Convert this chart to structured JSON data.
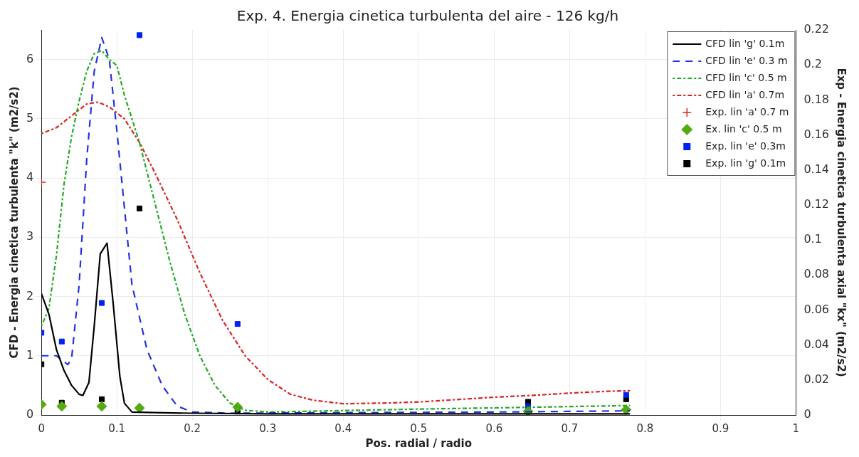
{
  "chart_data": {
    "type": "line",
    "title": "Exp. 4. Energia cinetica turbulenta del aire - 126 kg/h",
    "xlabel": "Pos. radial / radio",
    "ylabel": "CFD - Energia cinetica turbulenta \"k\" (m2/s2)",
    "y2label": "Exp - Energia cinetica turbulenta axial \"kx\" (m2/s2)",
    "xlim": [
      0,
      1
    ],
    "xticks": [
      0,
      0.1,
      0.2,
      0.3,
      0.4,
      0.5,
      0.6,
      0.7,
      0.8,
      0.9,
      1
    ],
    "ylim": [
      0,
      6.5
    ],
    "yticks": [
      0,
      1,
      2,
      3,
      4,
      5,
      6
    ],
    "y2lim": [
      0,
      0.22
    ],
    "y2ticks": [
      0,
      0.02,
      0.04,
      0.06,
      0.08,
      0.1,
      0.12,
      0.14,
      0.16,
      0.18,
      0.2,
      0.22
    ],
    "grid": true,
    "legend": "top right",
    "series": [
      {
        "name": "CFD lin 'g' 0.1m",
        "color": "#000000",
        "line_style": "solid",
        "marker": "none",
        "x": [
          0,
          0.01,
          0.02,
          0.03,
          0.04,
          0.05,
          0.055,
          0.063,
          0.07,
          0.078,
          0.087,
          0.095,
          0.104,
          0.11,
          0.12,
          0.15,
          0.2,
          0.3,
          0.5,
          0.78
        ],
        "values": [
          2.05,
          1.7,
          1.1,
          0.75,
          0.5,
          0.35,
          0.33,
          0.55,
          1.5,
          2.72,
          2.9,
          1.9,
          0.65,
          0.2,
          0.05,
          0.04,
          0.03,
          0.02,
          0.02,
          0.02
        ]
      },
      {
        "name": "CFD lin 'e' 0.3 m",
        "color": "#2233dd",
        "line_style": "dashed",
        "marker": "none",
        "x": [
          0,
          0.02,
          0.035,
          0.04,
          0.05,
          0.06,
          0.07,
          0.08,
          0.09,
          0.1,
          0.11,
          0.12,
          0.14,
          0.16,
          0.18,
          0.2,
          0.25,
          0.4,
          0.6,
          0.78
        ],
        "values": [
          1.0,
          1.0,
          0.85,
          0.95,
          2.2,
          4.3,
          5.8,
          6.37,
          6.0,
          4.8,
          3.5,
          2.2,
          1.1,
          0.5,
          0.15,
          0.05,
          0.03,
          0.04,
          0.05,
          0.07
        ]
      },
      {
        "name": "CFD lin 'c' 0.5 m",
        "color": "#22aa22",
        "line_style": "dotted",
        "marker": "none",
        "x": [
          0,
          0.01,
          0.02,
          0.03,
          0.04,
          0.05,
          0.06,
          0.07,
          0.08,
          0.09,
          0.1,
          0.11,
          0.13,
          0.15,
          0.17,
          0.19,
          0.21,
          0.23,
          0.25,
          0.27,
          0.3,
          0.5,
          0.6,
          0.78
        ],
        "values": [
          1.5,
          1.8,
          2.7,
          3.9,
          4.7,
          5.3,
          5.8,
          6.1,
          6.15,
          6.0,
          5.9,
          5.4,
          4.6,
          3.6,
          2.6,
          1.7,
          1.0,
          0.5,
          0.2,
          0.08,
          0.05,
          0.1,
          0.12,
          0.16
        ]
      },
      {
        "name": "CFD lin 'a' 0.7m",
        "color": "#dd2222",
        "line_style": "dotted",
        "marker": "none",
        "x": [
          0,
          0.02,
          0.04,
          0.06,
          0.075,
          0.09,
          0.11,
          0.13,
          0.15,
          0.18,
          0.21,
          0.24,
          0.27,
          0.3,
          0.33,
          0.36,
          0.4,
          0.45,
          0.5,
          0.55,
          0.6,
          0.65,
          0.7,
          0.75,
          0.78
        ],
        "values": [
          4.75,
          4.85,
          5.05,
          5.25,
          5.28,
          5.2,
          5.0,
          4.6,
          4.1,
          3.3,
          2.4,
          1.6,
          1.0,
          0.6,
          0.35,
          0.25,
          0.19,
          0.2,
          0.22,
          0.26,
          0.3,
          0.33,
          0.37,
          0.4,
          0.41
        ]
      },
      {
        "type": "scatter",
        "name": "Exp. lin 'a' 0.7 m",
        "color": "#dd2222",
        "marker": "cross",
        "axis": "y2",
        "x": [
          0
        ],
        "values": [
          0.133
        ]
      },
      {
        "type": "scatter",
        "name": "Ex. lin 'c' 0.5 m",
        "color": "#55aa11",
        "marker": "diamond",
        "axis": "y2",
        "x": [
          0,
          0.027,
          0.08,
          0.13,
          0.26,
          0.645,
          0.775
        ],
        "values": [
          0.006,
          0.005,
          0.005,
          0.004,
          0.0045,
          0.002,
          0.003
        ]
      },
      {
        "type": "scatter",
        "name": "Exp. lin 'e' 0.3m",
        "color": "#0022ee",
        "marker": "square",
        "axis": "y2",
        "x": [
          0,
          0.027,
          0.08,
          0.13,
          0.26,
          0.645,
          0.775
        ],
        "values": [
          0.047,
          0.042,
          0.064,
          0.217,
          0.052,
          0.005,
          0.0115
        ]
      },
      {
        "type": "scatter",
        "name": "Exp. lin 'g' 0.1m",
        "color": "#000000",
        "marker": "square",
        "axis": "y2",
        "x": [
          0,
          0.027,
          0.08,
          0.13,
          0.26,
          0.645,
          0.775
        ],
        "values": [
          0.029,
          0.007,
          0.009,
          0.118,
          0.002,
          0.0075,
          0.009
        ]
      }
    ]
  }
}
